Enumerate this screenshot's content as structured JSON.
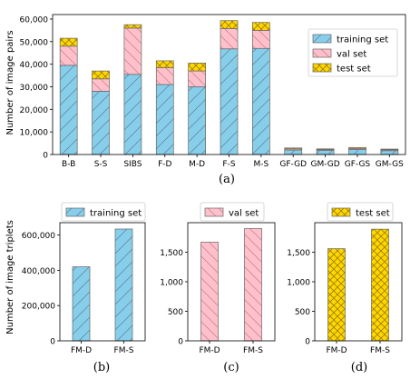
{
  "chart_data": [
    {
      "id": "a",
      "type": "bar",
      "stacked": true,
      "caption": "(a)",
      "ylabel": "Number of image pairs",
      "categories": [
        "B-B",
        "S-S",
        "SIBS",
        "F-D",
        "M-D",
        "F-S",
        "M-S",
        "GF-GD",
        "GM-GD",
        "GF-GS",
        "GM-GS"
      ],
      "series": [
        {
          "name": "training set",
          "color": "#87ceeb",
          "hatch": "diag-fwd",
          "values": [
            39500,
            28000,
            35500,
            31000,
            30000,
            46800,
            47000,
            2000,
            1800,
            2200,
            1700
          ]
        },
        {
          "name": "val set",
          "color": "#ffc0cb",
          "hatch": "diag-back",
          "values": [
            8500,
            5500,
            20500,
            7500,
            7000,
            9000,
            8000,
            500,
            400,
            500,
            400
          ]
        },
        {
          "name": "test set",
          "color": "#ffd700",
          "hatch": "cross",
          "values": [
            3500,
            3500,
            1500,
            3000,
            3500,
            3500,
            3500,
            400,
            300,
            400,
            300
          ]
        }
      ],
      "ylim": [
        0,
        62000
      ],
      "yticks": [
        0,
        10000,
        20000,
        30000,
        40000,
        50000,
        60000
      ],
      "ytick_labels": [
        "0",
        "10,000",
        "20,000",
        "30,000",
        "40,000",
        "50,000",
        "60,000"
      ],
      "legend": {
        "position": "right",
        "labels": [
          "training set",
          "val set",
          "test set"
        ]
      }
    },
    {
      "id": "b",
      "type": "bar",
      "caption": "(b)",
      "ylabel": "Number of image triplets",
      "categories": [
        "FM-D",
        "FM-S"
      ],
      "series": [
        {
          "name": "training set",
          "color": "#87ceeb",
          "hatch": "diag-fwd",
          "values": [
            420000,
            634000
          ]
        }
      ],
      "ylim": [
        0,
        670000
      ],
      "yticks": [
        0,
        200000,
        400000,
        600000
      ],
      "ytick_labels": [
        "0",
        "200,000",
        "400,000",
        "600,000"
      ],
      "legend": {
        "position": "top",
        "labels": [
          "training set"
        ]
      }
    },
    {
      "id": "c",
      "type": "bar",
      "caption": "(c)",
      "categories": [
        "FM-D",
        "FM-S"
      ],
      "series": [
        {
          "name": "val set",
          "color": "#ffc0cb",
          "hatch": "diag-back",
          "values": [
            1670,
            1900
          ]
        }
      ],
      "ylim": [
        0,
        2000
      ],
      "yticks": [
        0,
        500,
        1000,
        1500
      ],
      "ytick_labels": [
        "0",
        "500",
        "1,000",
        "1,500"
      ],
      "legend": {
        "position": "top",
        "labels": [
          "val set"
        ]
      }
    },
    {
      "id": "d",
      "type": "bar",
      "caption": "(d)",
      "categories": [
        "FM-D",
        "FM-S"
      ],
      "series": [
        {
          "name": "test set",
          "color": "#ffd700",
          "hatch": "cross",
          "values": [
            1560,
            1890
          ]
        }
      ],
      "ylim": [
        0,
        2000
      ],
      "yticks": [
        0,
        500,
        1000,
        1500
      ],
      "ytick_labels": [
        "0",
        "500",
        "1,000",
        "1,500"
      ],
      "legend": {
        "position": "top",
        "labels": [
          "test set"
        ]
      }
    }
  ]
}
